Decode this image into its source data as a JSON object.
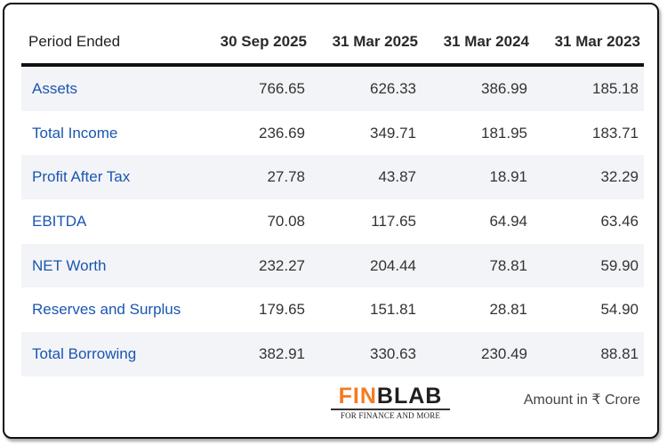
{
  "table": {
    "header_label": "Period Ended",
    "periods": [
      "30 Sep 2025",
      "31 Mar 2025",
      "31 Mar 2024",
      "31 Mar 2023"
    ],
    "rows": [
      {
        "label": "Assets",
        "values": [
          "766.65",
          "626.33",
          "386.99",
          "185.18"
        ]
      },
      {
        "label": "Total Income",
        "values": [
          "236.69",
          "349.71",
          "181.95",
          "183.71"
        ]
      },
      {
        "label": "Profit After Tax",
        "values": [
          "27.78",
          "43.87",
          "18.91",
          "32.29"
        ]
      },
      {
        "label": "EBITDA",
        "values": [
          "70.08",
          "117.65",
          "64.94",
          "63.46"
        ]
      },
      {
        "label": "NET Worth",
        "values": [
          "232.27",
          "204.44",
          "78.81",
          "59.90"
        ]
      },
      {
        "label": "Reserves and Surplus",
        "values": [
          "179.65",
          "151.81",
          "28.81",
          "54.90"
        ]
      },
      {
        "label": "Total Borrowing",
        "values": [
          "382.91",
          "330.63",
          "230.49",
          "88.81"
        ]
      }
    ]
  },
  "footer": {
    "logo_part1": "FIN",
    "logo_part2": "BLAB",
    "tagline": "FOR FINANCE AND MORE",
    "unit_note": "Amount in ₹ Crore"
  },
  "colors": {
    "label_blue": "#1a56b0",
    "logo_orange": "#f47b20",
    "stripe": "#f3f4f8"
  }
}
